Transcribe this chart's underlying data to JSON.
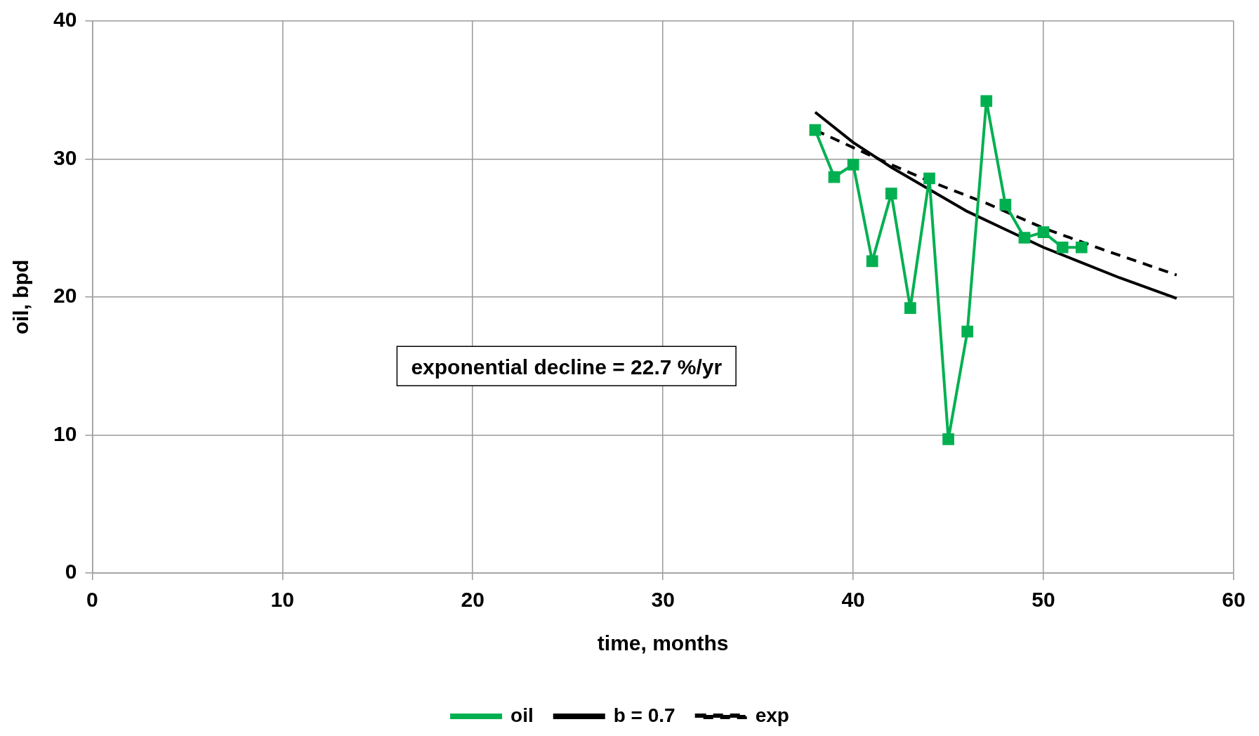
{
  "chart_data": {
    "type": "line",
    "xlabel": "time, months",
    "ylabel": "oil, bpd",
    "xlim": [
      0,
      60
    ],
    "xticks": [
      0,
      10,
      20,
      30,
      40,
      50,
      60
    ],
    "ylim": [
      0,
      40
    ],
    "yticks": [
      0,
      10,
      20,
      30,
      40
    ],
    "grid": true,
    "legend": "bottom",
    "annotations": [
      "exponential decline = 22.7 %/yr"
    ],
    "series": [
      {
        "name": "oil",
        "color": "#00b050",
        "marker": "square",
        "line_style": "solid",
        "x": [
          38,
          39,
          40,
          41,
          42,
          43,
          44,
          45,
          46,
          47,
          48,
          49,
          50,
          51,
          52
        ],
        "values": [
          32.1,
          28.7,
          29.6,
          22.6,
          27.5,
          19.2,
          28.6,
          9.7,
          17.5,
          34.2,
          26.7,
          24.3,
          24.7,
          23.6,
          23.6
        ]
      },
      {
        "name": "b = 0.7",
        "color": "#000000",
        "marker": "none",
        "line_style": "solid",
        "x": [
          38,
          40,
          42,
          44,
          46,
          48,
          50,
          52,
          54,
          57
        ],
        "values": [
          33.4,
          31.2,
          29.4,
          27.8,
          26.2,
          24.9,
          23.6,
          22.5,
          21.4,
          19.9
        ]
      },
      {
        "name": "exp",
        "color": "#000000",
        "marker": "none",
        "line_style": "dashed",
        "x": [
          38,
          41,
          44,
          47,
          50,
          53,
          57
        ],
        "values": [
          32.1,
          30.2,
          28.4,
          26.8,
          25.0,
          23.5,
          21.6
        ]
      }
    ]
  }
}
